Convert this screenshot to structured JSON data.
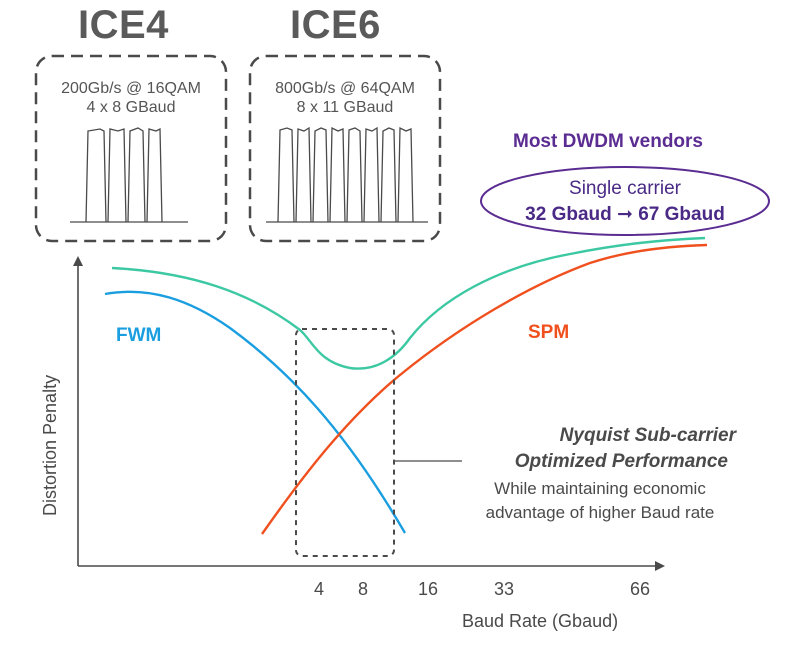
{
  "ice4": {
    "title": "ICE4",
    "rate_line": "200Gb/s @ 16QAM",
    "carrier_line": "4 x 8 GBaud",
    "carrier_count": 4
  },
  "ice6": {
    "title": "ICE6",
    "rate_line": "800Gb/s @ 64QAM",
    "carrier_line": "8 x 11 GBaud",
    "carrier_count": 8
  },
  "vendors": {
    "heading": "Most DWDM vendors",
    "line1": "Single carrier",
    "line2": "32 Gbaud ➞ 67 Gbaud"
  },
  "curves": {
    "fwm_label": "FWM",
    "spm_label": "SPM"
  },
  "nyquist": {
    "title_line1": "Nyquist Sub-carrier",
    "title_line2": "Optimized Performance",
    "sub_line1": "While maintaining economic",
    "sub_line2": "advantage of higher Baud rate"
  },
  "axes": {
    "x_title": "Baud Rate (Gbaud)",
    "y_title": "Distortion Penalty",
    "ticks": [
      "4",
      "8",
      "16",
      "33",
      "66"
    ]
  },
  "colors": {
    "fwm": "#1a9ee0",
    "spm": "#f0501e",
    "total": "#3cc8a2",
    "vendor": "#5b2c91",
    "dashed": "#4a4a4a"
  }
}
